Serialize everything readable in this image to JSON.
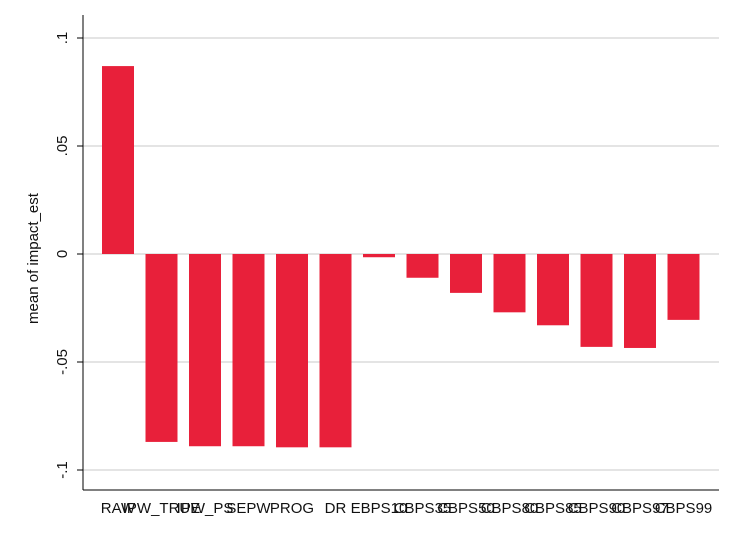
{
  "chart_data": {
    "type": "bar",
    "title": "",
    "xlabel": "",
    "ylabel": "mean of impact_est",
    "ylim": [
      -0.11,
      0.1
    ],
    "yticks": [
      {
        "value": 0.1,
        "label": ".1"
      },
      {
        "value": 0.05,
        "label": ".05"
      },
      {
        "value": 0,
        "label": "0"
      },
      {
        "value": -0.05,
        "label": "-.05"
      },
      {
        "value": -0.1,
        "label": "-.1"
      }
    ],
    "grid": true,
    "bar_color": "#e8203a",
    "categories": [
      "RAW",
      "IPW_TRUE",
      "IPW_PS",
      "SEPW",
      "PROG",
      "DR",
      "EBPS10",
      "CBPS35",
      "CBPS50",
      "CBPS80",
      "CBPS85",
      "CBPS90",
      "CBPS97",
      "CBPS99"
    ],
    "values": [
      0.087,
      -0.087,
      -0.089,
      -0.089,
      -0.0895,
      -0.0895,
      -0.0015,
      -0.011,
      -0.018,
      -0.027,
      -0.033,
      -0.043,
      -0.0435,
      -0.0305
    ]
  }
}
